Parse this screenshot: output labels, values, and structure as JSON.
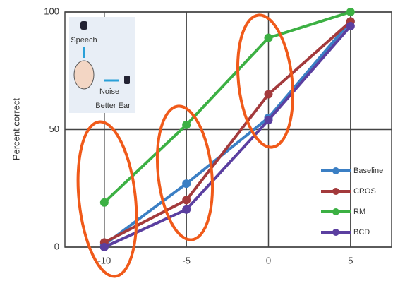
{
  "chart_data": {
    "type": "line",
    "y_label": "Percent correct",
    "xlim": [
      -12.4,
      7.5
    ],
    "ylim": [
      0,
      100
    ],
    "xticks": [
      -10,
      -5,
      0,
      5
    ],
    "yticks": [
      0,
      50,
      100
    ],
    "grid": true,
    "legend": "lower right",
    "x": [
      -10,
      -5,
      0,
      5
    ],
    "series": [
      {
        "name": "Baseline",
        "color": "#3b7fc4",
        "values": [
          1,
          27,
          55,
          96
        ]
      },
      {
        "name": "CROS",
        "color": "#a33a3c",
        "values": [
          2,
          20,
          65,
          96
        ]
      },
      {
        "name": "RM",
        "color": "#3cb043",
        "values": [
          19,
          52,
          89,
          100
        ]
      },
      {
        "name": "BCD",
        "color": "#5b3fa0",
        "values": [
          0,
          16,
          54,
          94
        ]
      }
    ],
    "annotations": [
      "Speech",
      "Noise",
      "Better Ear"
    ]
  }
}
